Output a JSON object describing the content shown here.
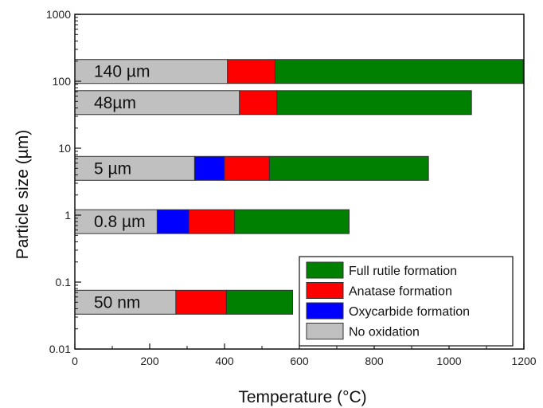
{
  "chart_data": {
    "type": "bar",
    "orientation": "horizontal-stacked",
    "xlabel": "Temperature (°C)",
    "ylabel": "Particle size (µm)",
    "xlim": [
      0,
      1200
    ],
    "ylim": [
      0.01,
      1000
    ],
    "yscale": "log",
    "x_ticks": [
      "0",
      "200",
      "400",
      "600",
      "800",
      "1000",
      "1200"
    ],
    "y_ticks": [
      "0.01",
      "0.1",
      "1",
      "10",
      "100",
      "1000"
    ],
    "grid": false,
    "legend_position": "bottom-right",
    "series": [
      {
        "name": "No oxidation",
        "color": "#c0c0c0"
      },
      {
        "name": "Oxycarbide formation",
        "color": "#0000ff"
      },
      {
        "name": "Anatase  formation",
        "color": "#ff0000"
      },
      {
        "name": "Full rutile formation",
        "color": "#008000"
      }
    ],
    "legend_order": [
      3,
      2,
      1,
      0
    ],
    "bars": [
      {
        "label": "140 µm",
        "size_um": 140,
        "segments": [
          [
            0,
            408
          ],
          null,
          [
            408,
            535
          ],
          [
            535,
            1198
          ]
        ]
      },
      {
        "label": "48µm",
        "size_um": 48,
        "segments": [
          [
            0,
            440
          ],
          null,
          [
            440,
            540
          ],
          [
            540,
            1060
          ]
        ]
      },
      {
        "label": "5 µm",
        "size_um": 5,
        "segments": [
          [
            0,
            320
          ],
          [
            320,
            400
          ],
          [
            400,
            520
          ],
          [
            520,
            945
          ]
        ]
      },
      {
        "label": "0.8 µm",
        "size_um": 0.8,
        "segments": [
          [
            0,
            220
          ],
          [
            220,
            305
          ],
          [
            305,
            427
          ],
          [
            427,
            733
          ]
        ]
      },
      {
        "label": "50 nm",
        "size_um": 0.05,
        "segments": [
          [
            0,
            270
          ],
          null,
          [
            270,
            405
          ],
          [
            405,
            582
          ]
        ]
      }
    ]
  }
}
